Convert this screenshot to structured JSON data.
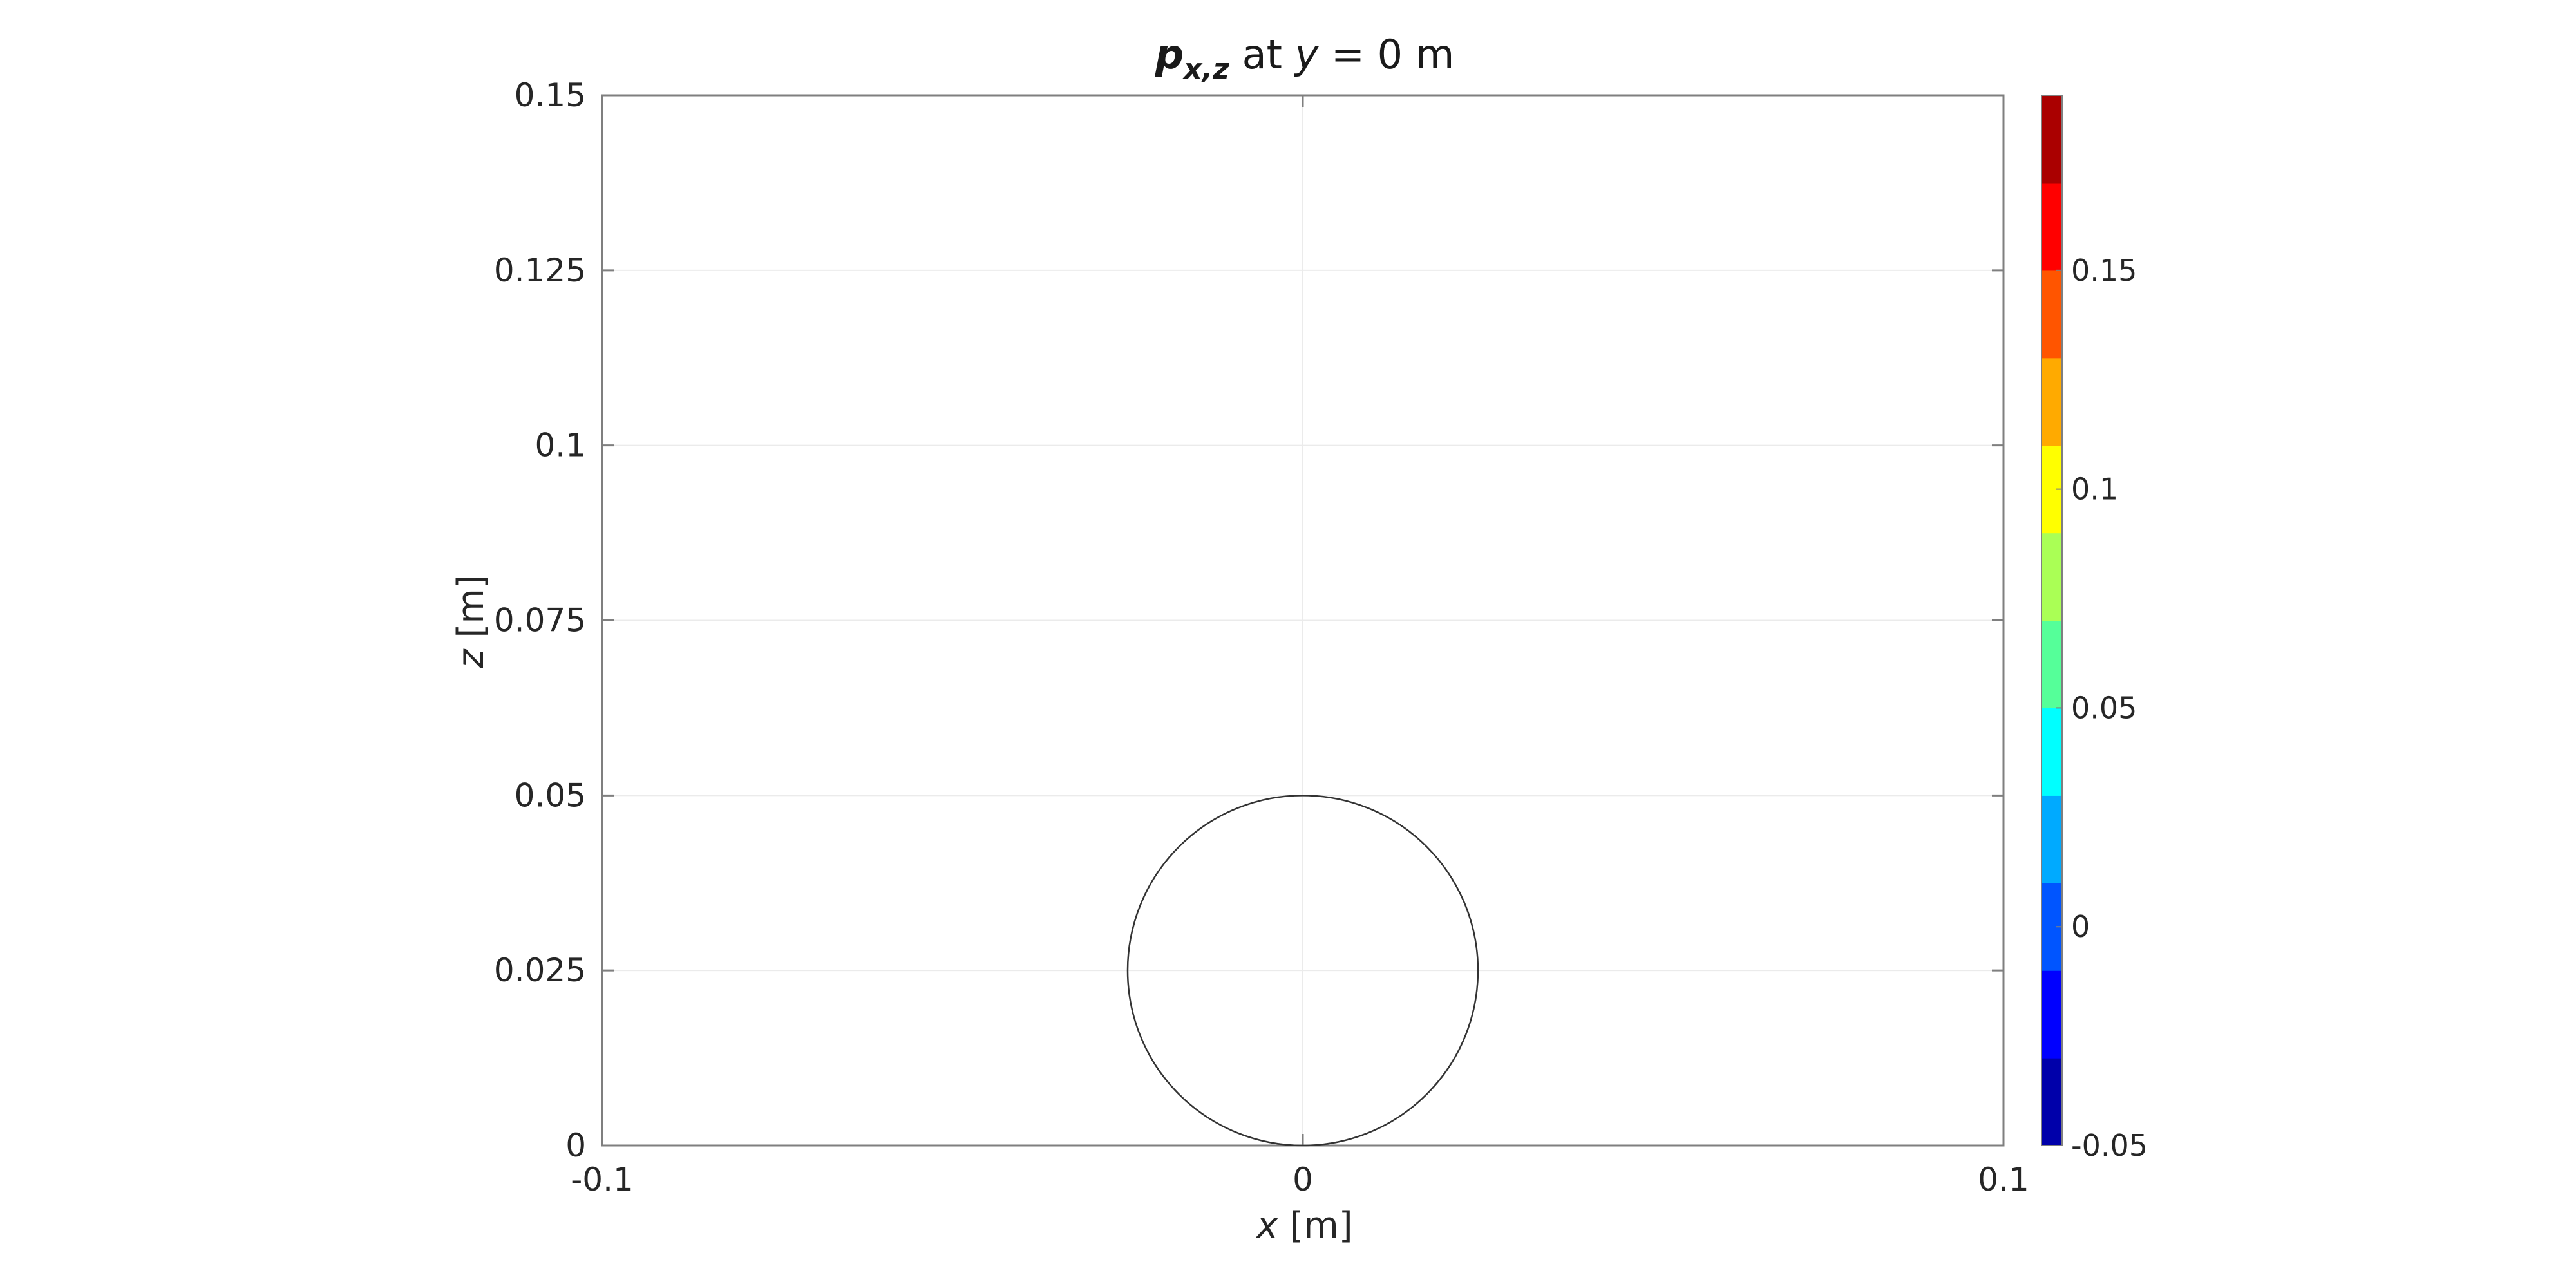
{
  "chart_data": {
    "type": "contour",
    "title": {
      "symbol": "p",
      "subscript": "x,z",
      "text_before_var": " at ",
      "variable": "y",
      "text_after_var": " = 0 m"
    },
    "xlabel": {
      "variable": "x",
      "unit": " [m]"
    },
    "ylabel": {
      "variable": "z",
      "unit": " [m]"
    },
    "xlim": [
      -0.1,
      0.1
    ],
    "ylim": [
      0,
      0.15
    ],
    "xticks": [
      {
        "value": -0.1,
        "label": "-0.1"
      },
      {
        "value": 0,
        "label": "0"
      },
      {
        "value": 0.1,
        "label": "0.1"
      }
    ],
    "yticks": [
      {
        "value": 0,
        "label": "0"
      },
      {
        "value": 0.025,
        "label": "0.025"
      },
      {
        "value": 0.05,
        "label": "0.05"
      },
      {
        "value": 0.075,
        "label": "0.075"
      },
      {
        "value": 0.1,
        "label": "0.1"
      },
      {
        "value": 0.125,
        "label": "0.125"
      },
      {
        "value": 0.15,
        "label": "0.15"
      }
    ],
    "grid": true,
    "circle": {
      "center_x": 0,
      "center_z": 0.025,
      "radius": 0.025
    },
    "colorbar": {
      "range": [
        -0.05,
        0.19
      ],
      "ticks": [
        {
          "value": -0.05,
          "label": "-0.05"
        },
        {
          "value": 0,
          "label": "0"
        },
        {
          "value": 0.05,
          "label": "0.05"
        },
        {
          "value": 0.1,
          "label": "0.1"
        },
        {
          "value": 0.15,
          "label": "0.15"
        }
      ],
      "colors": [
        "#0000aa",
        "#0000ff",
        "#0055ff",
        "#00aaff",
        "#00ffff",
        "#55ff99",
        "#aaff55",
        "#ffff00",
        "#ffaa00",
        "#ff5500",
        "#ff0000",
        "#aa0000"
      ]
    }
  }
}
